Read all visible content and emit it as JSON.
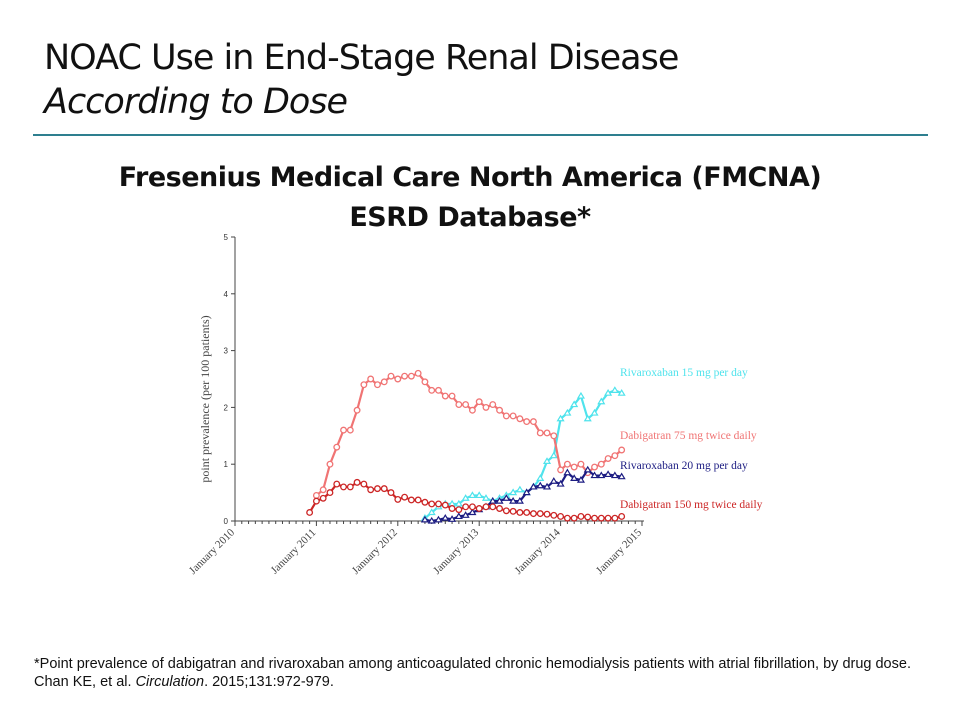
{
  "slide": {
    "title": "NOAC Use in End-Stage Renal Disease",
    "subtitle": "According to Dose",
    "chart_heading_line1": "Fresenius Medical Care North America (FMCNA)",
    "chart_heading_line2": "ESRD Database*",
    "footnote": "*Point prevalence of dabigatran and rivaroxaban among anticoagulated chronic hemodialysis patients with atrial fibrillation, by drug dose.",
    "citation_authors": "Chan KE, et al. ",
    "citation_journal": "Circulation",
    "citation_rest": ". 2015;131:972-979."
  },
  "chart_data": {
    "type": "line",
    "ylabel": "point prevalence (per 100 patients)",
    "ylim": [
      0,
      5
    ],
    "yticks": [
      "0",
      "1",
      "2",
      "3",
      "4",
      "5"
    ],
    "xlim": [
      "2010-01",
      "2015-01"
    ],
    "xticks": [
      "January 2010",
      "January 2011",
      "January 2012",
      "January 2013",
      "January 2014",
      "January 2015"
    ],
    "grid": false,
    "series": [
      {
        "name": "Rivaroxaban 15 mg per day",
        "color": "#4fe3ec",
        "marker": "triangle",
        "start": "2012-05",
        "values": [
          0.05,
          0.15,
          0.25,
          0.3,
          0.3,
          0.3,
          0.4,
          0.45,
          0.45,
          0.4,
          0.35,
          0.4,
          0.45,
          0.5,
          0.55,
          0.5,
          0.6,
          0.75,
          1.05,
          1.15,
          1.8,
          1.9,
          2.05,
          2.2,
          1.8,
          1.9,
          2.1,
          2.25,
          2.3,
          2.25
        ]
      },
      {
        "name": "Dabigatran 75 mg twice daily",
        "color": "#f07474",
        "marker": "circle",
        "start": "2011-01",
        "values": [
          0.45,
          0.55,
          1.0,
          1.3,
          1.6,
          1.6,
          1.95,
          2.4,
          2.5,
          2.4,
          2.45,
          2.55,
          2.5,
          2.55,
          2.55,
          2.6,
          2.45,
          2.3,
          2.3,
          2.2,
          2.2,
          2.05,
          2.05,
          1.95,
          2.1,
          2.0,
          2.05,
          1.95,
          1.85,
          1.85,
          1.8,
          1.75,
          1.75,
          1.55,
          1.55,
          1.5,
          0.9,
          1.0,
          0.95,
          1.0,
          0.85,
          0.95,
          1.0,
          1.1,
          1.15,
          1.25
        ]
      },
      {
        "name": "Rivaroxaban 20 mg per day",
        "color": "#1c1c82",
        "marker": "triangle",
        "start": "2012-05",
        "values": [
          0.02,
          0.0,
          0.02,
          0.05,
          0.03,
          0.08,
          0.1,
          0.15,
          0.2,
          0.25,
          0.35,
          0.35,
          0.4,
          0.35,
          0.35,
          0.5,
          0.6,
          0.62,
          0.6,
          0.7,
          0.65,
          0.85,
          0.75,
          0.72,
          0.9,
          0.8,
          0.8,
          0.82,
          0.8,
          0.78
        ]
      },
      {
        "name": "Dabigatran 150 mg twice daily",
        "color": "#cc2626",
        "marker": "circle",
        "start": "2010-12",
        "values": [
          0.15,
          0.35,
          0.4,
          0.5,
          0.65,
          0.6,
          0.6,
          0.68,
          0.65,
          0.55,
          0.57,
          0.57,
          0.5,
          0.38,
          0.42,
          0.37,
          0.37,
          0.33,
          0.3,
          0.3,
          0.28,
          0.22,
          0.2,
          0.25,
          0.25,
          0.22,
          0.25,
          0.25,
          0.22,
          0.18,
          0.17,
          0.15,
          0.15,
          0.13,
          0.13,
          0.12,
          0.1,
          0.08,
          0.05,
          0.05,
          0.08,
          0.07,
          0.05,
          0.05,
          0.05,
          0.05,
          0.08
        ]
      }
    ]
  }
}
